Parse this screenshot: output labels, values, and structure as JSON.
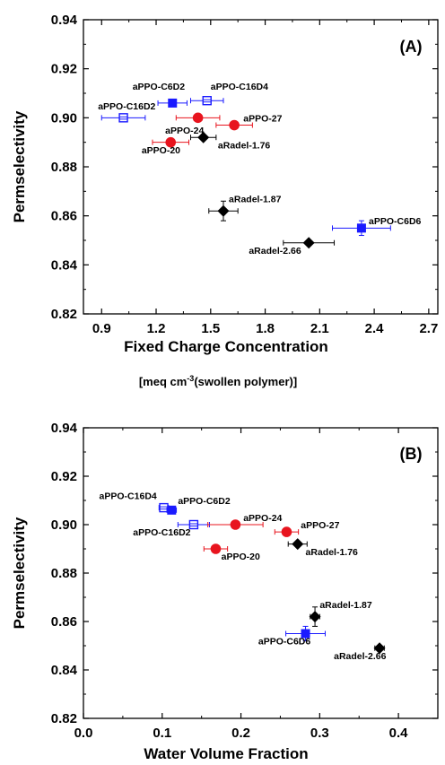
{
  "chart_data": [
    {
      "type": "scatter",
      "panel_label": "(A)",
      "xlabel": "Fixed Charge Concentration",
      "units_label": {
        "pre": "[meq cm",
        "sup": "-3",
        "post": "(swollen polymer)]"
      },
      "ylabel": "Permselectivity",
      "xlim": [
        0.8,
        2.75
      ],
      "ylim": [
        0.82,
        0.94
      ],
      "xticks": [
        "0.9",
        "1.2",
        "1.5",
        "1.8",
        "2.1",
        "2.4",
        "2.7"
      ],
      "yticks": [
        "0.82",
        "0.84",
        "0.86",
        "0.88",
        "0.90",
        "0.92",
        "0.94"
      ],
      "grid": false,
      "points": [
        {
          "label": "aPPO-C6D2",
          "marker": "square-filled",
          "color": "#1a1aff",
          "x": 1.29,
          "y": 0.906,
          "xerr": 0.08
        },
        {
          "label": "aPPO-C16D4",
          "marker": "square-open",
          "color": "#1a1aff",
          "x": 1.48,
          "y": 0.907,
          "xerr": 0.09
        },
        {
          "label": "aPPO-C16D2",
          "marker": "square-open",
          "color": "#1a1aff",
          "x": 1.02,
          "y": 0.9,
          "xerr": 0.12
        },
        {
          "label": "aPPO-C6D6",
          "marker": "square-filled",
          "color": "#1a1aff",
          "x": 2.33,
          "y": 0.855,
          "xerr": 0.16,
          "yerr": 0.003
        },
        {
          "label": "aPPO-24",
          "marker": "circle",
          "color": "#e8141e",
          "x": 1.43,
          "y": 0.9,
          "xerr": 0.12
        },
        {
          "label": "aPPO-27",
          "marker": "circle",
          "color": "#e8141e",
          "x": 1.63,
          "y": 0.897,
          "xerr": 0.1
        },
        {
          "label": "aPPO-20",
          "marker": "circle",
          "color": "#e8141e",
          "x": 1.28,
          "y": 0.89,
          "xerr": 0.1
        },
        {
          "label": "aRadel-1.76",
          "marker": "diamond",
          "color": "#000000",
          "x": 1.46,
          "y": 0.892,
          "xerr": 0.07
        },
        {
          "label": "aRadel-1.87",
          "marker": "diamond",
          "color": "#000000",
          "x": 1.57,
          "y": 0.862,
          "xerr": 0.08,
          "yerr": 0.004
        },
        {
          "label": "aRadel-2.66",
          "marker": "diamond",
          "color": "#000000",
          "x": 2.04,
          "y": 0.849,
          "xerr": 0.14
        }
      ],
      "annotations": [
        {
          "text": "aPPO-C6D2",
          "x": 1.07,
          "y": 0.9115
        },
        {
          "text": "aPPO-C16D4",
          "x": 1.5,
          "y": 0.9115
        },
        {
          "text": "aPPO-C16D2",
          "x": 0.88,
          "y": 0.9035
        },
        {
          "text": "aPPO-24",
          "x": 1.25,
          "y": 0.8935
        },
        {
          "text": "aPPO-27",
          "x": 1.68,
          "y": 0.8985
        },
        {
          "text": "aPPO-20",
          "x": 1.12,
          "y": 0.8855
        },
        {
          "text": "aRadel-1.76",
          "x": 1.54,
          "y": 0.8875
        },
        {
          "text": "aRadel-1.87",
          "x": 1.6,
          "y": 0.8655
        },
        {
          "text": "aPPO-C6D6",
          "x": 2.37,
          "y": 0.8565
        },
        {
          "text": "aRadel-2.66",
          "x": 1.71,
          "y": 0.8445
        }
      ]
    },
    {
      "type": "scatter",
      "panel_label": "(B)",
      "xlabel": "Water Volume Fraction",
      "ylabel": "Permselectivity",
      "xlim": [
        0.0,
        0.45
      ],
      "ylim": [
        0.82,
        0.94
      ],
      "xticks": [
        "0.0",
        "0.1",
        "0.2",
        "0.3",
        "0.4"
      ],
      "yticks": [
        "0.82",
        "0.84",
        "0.86",
        "0.88",
        "0.90",
        "0.92",
        "0.94"
      ],
      "grid": false,
      "points": [
        {
          "label": "aPPO-C16D4",
          "marker": "square-open",
          "color": "#1a1aff",
          "x": 0.102,
          "y": 0.907,
          "xerr": 0.006
        },
        {
          "label": "aPPO-C6D2",
          "marker": "square-filled",
          "color": "#1a1aff",
          "x": 0.112,
          "y": 0.906,
          "xerr": 0.006
        },
        {
          "label": "aPPO-C16D2",
          "marker": "square-open",
          "color": "#1a1aff",
          "x": 0.14,
          "y": 0.9,
          "xerr": 0.02
        },
        {
          "label": "aPPO-C6D6",
          "marker": "square-filled",
          "color": "#1a1aff",
          "x": 0.282,
          "y": 0.855,
          "xerr": 0.025,
          "yerr": 0.003
        },
        {
          "label": "aPPO-24",
          "marker": "circle",
          "color": "#e8141e",
          "x": 0.193,
          "y": 0.9,
          "xerr": 0.035
        },
        {
          "label": "aPPO-27",
          "marker": "circle",
          "color": "#e8141e",
          "x": 0.258,
          "y": 0.897,
          "xerr": 0.015
        },
        {
          "label": "aPPO-20",
          "marker": "circle",
          "color": "#e8141e",
          "x": 0.168,
          "y": 0.89,
          "xerr": 0.015
        },
        {
          "label": "aRadel-1.76",
          "marker": "diamond",
          "color": "#000000",
          "x": 0.272,
          "y": 0.892,
          "xerr": 0.012
        },
        {
          "label": "aRadel-1.87",
          "marker": "diamond",
          "color": "#000000",
          "x": 0.294,
          "y": 0.862,
          "xerr": 0.006,
          "yerr": 0.004
        },
        {
          "label": "aRadel-2.66",
          "marker": "diamond",
          "color": "#000000",
          "x": 0.376,
          "y": 0.849,
          "xerr": 0.006
        }
      ],
      "annotations": [
        {
          "text": "aPPO-C16D4",
          "x": 0.02,
          "y": 0.9105
        },
        {
          "text": "aPPO-C6D2",
          "x": 0.12,
          "y": 0.9085
        },
        {
          "text": "aPPO-C16D2",
          "x": 0.063,
          "y": 0.8955
        },
        {
          "text": "aPPO-24",
          "x": 0.203,
          "y": 0.9015
        },
        {
          "text": "aPPO-27",
          "x": 0.276,
          "y": 0.8985
        },
        {
          "text": "aPPO-20",
          "x": 0.175,
          "y": 0.8855
        },
        {
          "text": "aRadel-1.76",
          "x": 0.282,
          "y": 0.8875
        },
        {
          "text": "aRadel-1.87",
          "x": 0.3,
          "y": 0.8655
        },
        {
          "text": "aPPO-C6D6",
          "x": 0.222,
          "y": 0.8505
        },
        {
          "text": "aRadel-2.66",
          "x": 0.318,
          "y": 0.8445
        }
      ]
    }
  ]
}
